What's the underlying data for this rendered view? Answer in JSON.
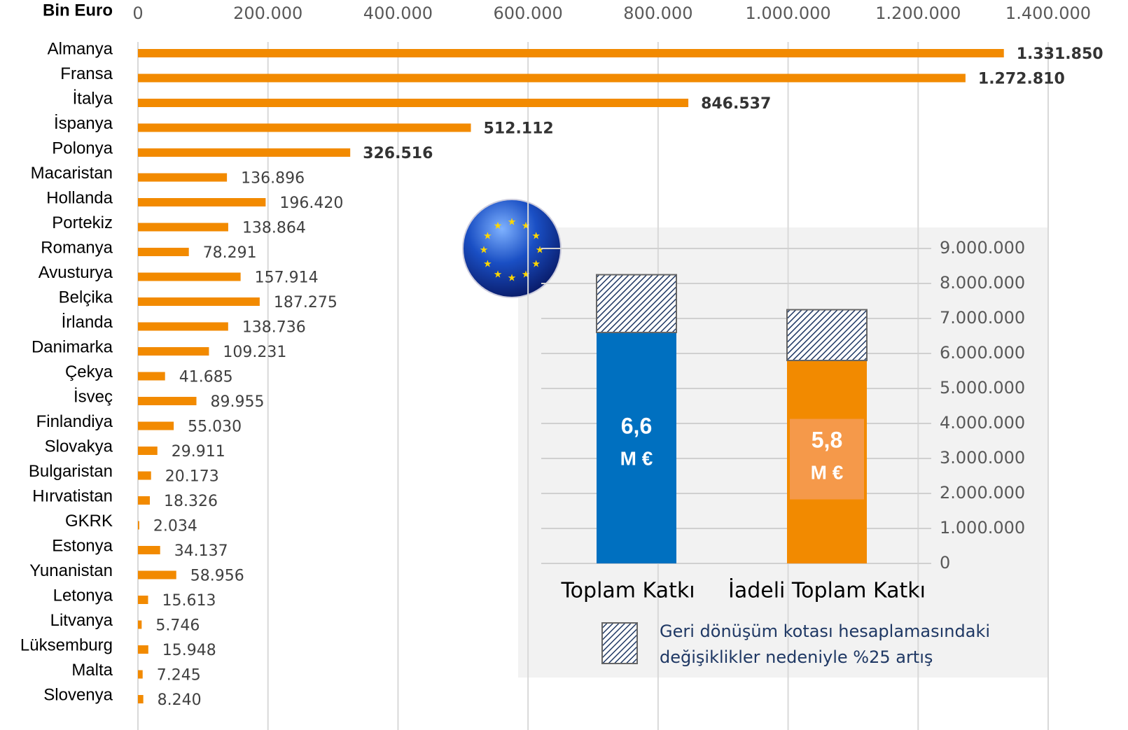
{
  "chart_data": [
    {
      "type": "bar",
      "orientation": "horizontal",
      "xlabel": "Bin Euro",
      "categories": [
        "Almanya",
        "Fransa",
        "İtalya",
        "İspanya",
        "Polonya",
        "Macaristan",
        "Hollanda",
        "Portekiz",
        "Romanya",
        "Avusturya",
        "Belçika",
        "İrlanda",
        "Danimarka",
        "Çekya",
        "İsveç",
        "Finlandiya",
        "Slovakya",
        "Bulgaristan",
        "Hırvatistan",
        "GKRK",
        "Estonya",
        "Yunanistan",
        "Letonya",
        "Litvanya",
        "Lüksemburg",
        "Malta",
        "Slovenya"
      ],
      "values": [
        1331850,
        1272810,
        846537,
        512112,
        326516,
        136896,
        196420,
        138864,
        78291,
        157914,
        187275,
        138736,
        109231,
        41685,
        89955,
        55030,
        29911,
        20173,
        18326,
        2034,
        34137,
        58956,
        15613,
        5746,
        15948,
        7245,
        8240
      ],
      "value_labels": [
        "1.331.850",
        "1.272.810",
        "846.537",
        "512.112",
        "326.516",
        "136.896",
        "196.420",
        "138.864",
        "78.291",
        "157.914",
        "187.275",
        "138.736",
        "109.231",
        "41.685",
        "89.955",
        "55.030",
        "29.911",
        "20.173",
        "18.326",
        "2.034",
        "34.137",
        "58.956",
        "15.613",
        "5.746",
        "15.948",
        "7.245",
        "8.240"
      ],
      "color": "#f28a00",
      "xlim": [
        0,
        1400000
      ],
      "xticks": [
        0,
        {
          "value": 200000,
          "label": "200.000"
        },
        {
          "value": 400000,
          "label": "400.000"
        },
        {
          "value": 600000,
          "label": "600.000"
        },
        {
          "value": 800000,
          "label": "800.000"
        },
        {
          "value": 1000000,
          "label": "1.000.000"
        },
        {
          "value": 1200000,
          "label": "1.200.000"
        },
        {
          "value": 1400000,
          "label": "1.400.000"
        }
      ],
      "grid": true
    },
    {
      "type": "stacked_bar",
      "categories": [
        "Toplam Katkı",
        "İadeli Toplam Katkı"
      ],
      "series": [
        {
          "colors": [
            "#0070c0",
            "#f28a00"
          ],
          "values": [
            6600000,
            5800000
          ],
          "value_labels": [
            "6,6",
            "5,8"
          ],
          "unit_label": "M €"
        },
        {
          "name": "Geri dönüşüm kotası hesaplamasındaki değişiklikler nedeniyle %25 artış",
          "color": "#1f3864",
          "pattern": "hatch",
          "values": [
            1650000,
            1450000
          ]
        }
      ],
      "ylim": [
        0,
        9000000
      ],
      "yticks": [
        0,
        {
          "value": 1000000,
          "label": "1.000.000"
        },
        {
          "value": 2000000,
          "label": "2.000.000"
        },
        {
          "value": 3000000,
          "label": "3.000.000"
        },
        {
          "value": 4000000,
          "label": "4.000.000"
        },
        {
          "value": 5000000,
          "label": "5.000.000"
        },
        {
          "value": 6000000,
          "label": "6.000.000"
        },
        {
          "value": 7000000,
          "label": "7.000.000"
        },
        {
          "value": 8000000,
          "label": "8.000.000"
        },
        {
          "value": 9000000,
          "label": "9.000.000"
        }
      ],
      "grid": true
    }
  ]
}
